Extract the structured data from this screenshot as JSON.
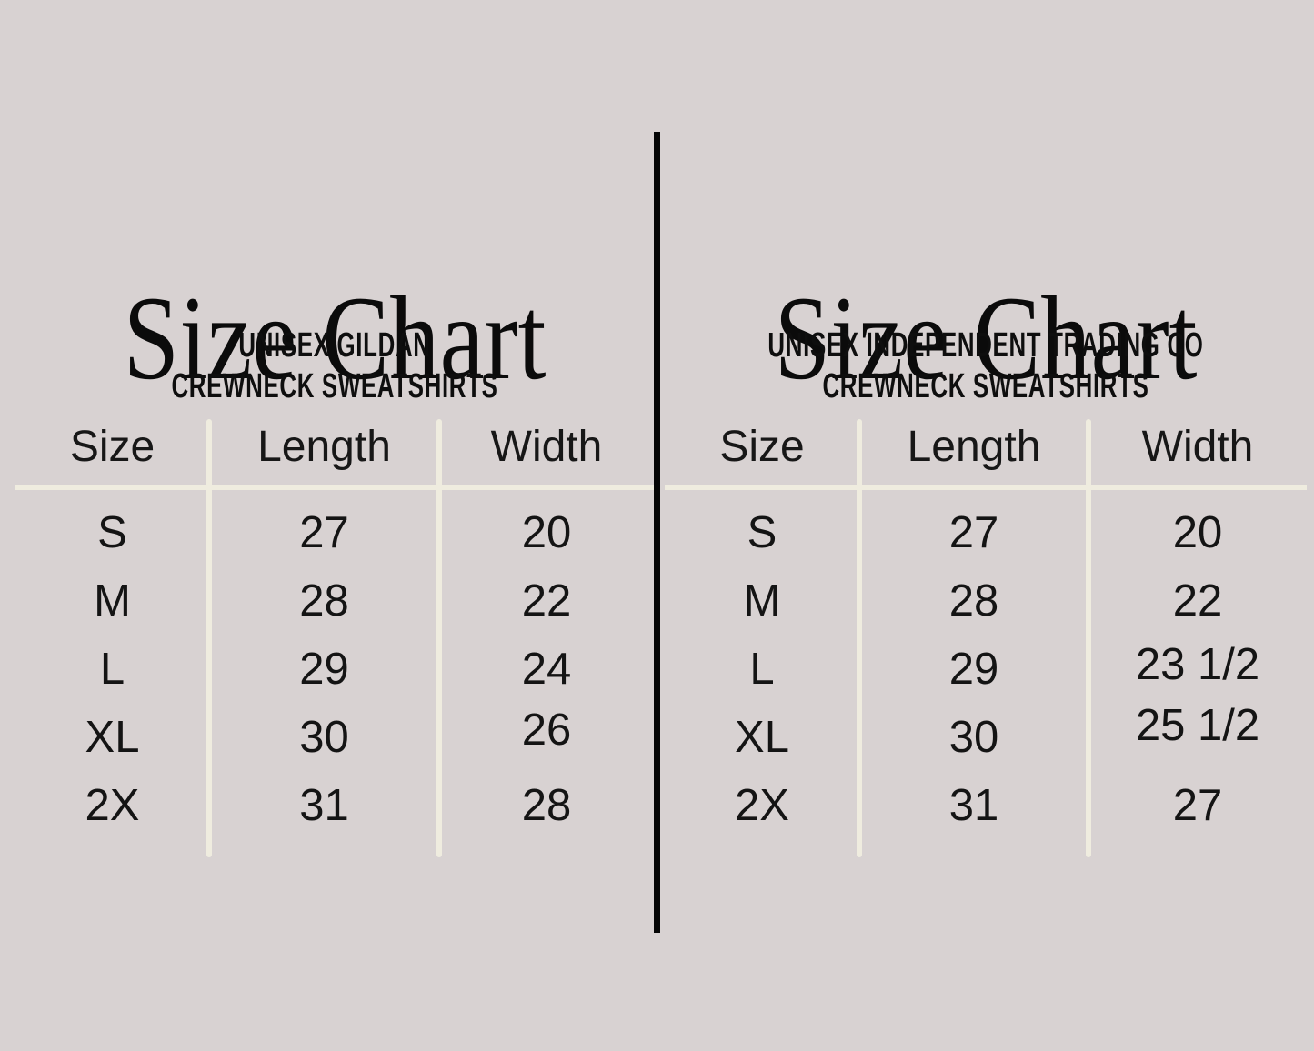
{
  "page": {
    "background_color": "#d8d2d2",
    "divider_color": "#050505",
    "rule_color": "#efecdf",
    "text_color": "#141414"
  },
  "chart_data": [
    {
      "type": "table",
      "title": "Size Chart",
      "subtitle_line1": "UNISEX GILDAN",
      "subtitle_line2": "CREWNECK SWEATSHIRTS",
      "columns": [
        "Size",
        "Length",
        "Width"
      ],
      "rows": [
        [
          "S",
          "27",
          "20"
        ],
        [
          "M",
          "28",
          "22"
        ],
        [
          "L",
          "29",
          "24"
        ],
        [
          "XL",
          "30",
          "26"
        ],
        [
          "2X",
          "31",
          "28"
        ]
      ]
    },
    {
      "type": "table",
      "title": "Size Chart",
      "subtitle_line1": "UNISEX INDEPENDENT TRADING CO",
      "subtitle_line2": "CREWNECK SWEATSHIRTS",
      "columns": [
        "Size",
        "Length",
        "Width"
      ],
      "rows": [
        [
          "S",
          "27",
          "20"
        ],
        [
          "M",
          "28",
          "22"
        ],
        [
          "L",
          "29",
          "23 1/2"
        ],
        [
          "XL",
          "30",
          "25 1/2"
        ],
        [
          "2X",
          "31",
          "27"
        ]
      ]
    }
  ]
}
